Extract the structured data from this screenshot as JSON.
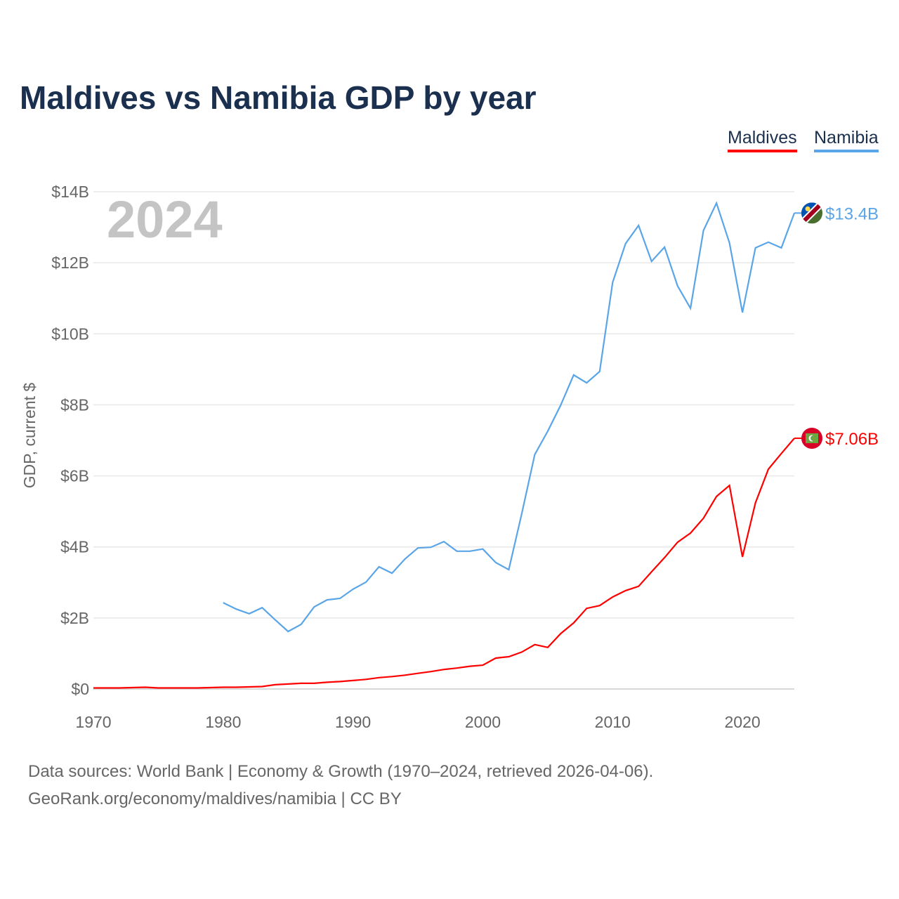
{
  "chart_data": {
    "type": "line",
    "title": "Maldives vs Namibia GDP by year",
    "ylabel": "GDP, current $",
    "xlabel": "",
    "year_label": "2024",
    "xlim": [
      1970,
      2024
    ],
    "ylim": [
      0,
      14
    ],
    "y_unit": "billion USD",
    "xticks": [
      1970,
      1980,
      1990,
      2000,
      2010,
      2020
    ],
    "yticks": [
      {
        "v": 0,
        "label": "$0"
      },
      {
        "v": 2,
        "label": "$2B"
      },
      {
        "v": 4,
        "label": "$4B"
      },
      {
        "v": 6,
        "label": "$6B"
      },
      {
        "v": 8,
        "label": "$8B"
      },
      {
        "v": 10,
        "label": "$10B"
      },
      {
        "v": 12,
        "label": "$12B"
      },
      {
        "v": 14,
        "label": "$14B"
      }
    ],
    "grid": true,
    "legend_position": "top-right",
    "series": [
      {
        "name": "Maldives",
        "color": "#ff0000",
        "end_label": "$7.06B",
        "icon": "maldives-flag-icon",
        "start": 1970,
        "values": [
          0.03,
          0.03,
          0.03,
          0.04,
          0.05,
          0.03,
          0.03,
          0.03,
          0.03,
          0.04,
          0.05,
          0.05,
          0.06,
          0.07,
          0.12,
          0.14,
          0.16,
          0.16,
          0.19,
          0.21,
          0.24,
          0.27,
          0.32,
          0.35,
          0.39,
          0.44,
          0.49,
          0.55,
          0.59,
          0.64,
          0.67,
          0.87,
          0.91,
          1.04,
          1.25,
          1.17,
          1.56,
          1.86,
          2.27,
          2.35,
          2.59,
          2.77,
          2.89,
          3.3,
          3.7,
          4.13,
          4.39,
          4.81,
          5.42,
          5.73,
          3.72,
          5.24,
          6.19,
          6.63,
          7.06
        ]
      },
      {
        "name": "Namibia",
        "color": "#5aa5e8",
        "end_label": "$13.4B",
        "icon": "namibia-flag-icon",
        "start": 1980,
        "values": [
          2.43,
          2.25,
          2.12,
          2.29,
          1.95,
          1.62,
          1.82,
          2.31,
          2.51,
          2.55,
          2.81,
          3.01,
          3.44,
          3.26,
          3.66,
          3.97,
          3.99,
          4.15,
          3.88,
          3.88,
          3.94,
          3.56,
          3.36,
          4.94,
          6.6,
          7.26,
          7.99,
          8.84,
          8.62,
          8.94,
          11.45,
          12.54,
          13.05,
          12.04,
          12.44,
          11.35,
          10.72,
          12.91,
          13.68,
          12.56,
          10.6,
          12.42,
          12.58,
          12.42,
          13.4
        ]
      }
    ]
  },
  "footer": {
    "line1": "Data sources: World Bank | Economy & Growth (1970–2024, retrieved 2026-04-06).",
    "line2": "GeoRank.org/economy/maldives/namibia | CC BY"
  }
}
